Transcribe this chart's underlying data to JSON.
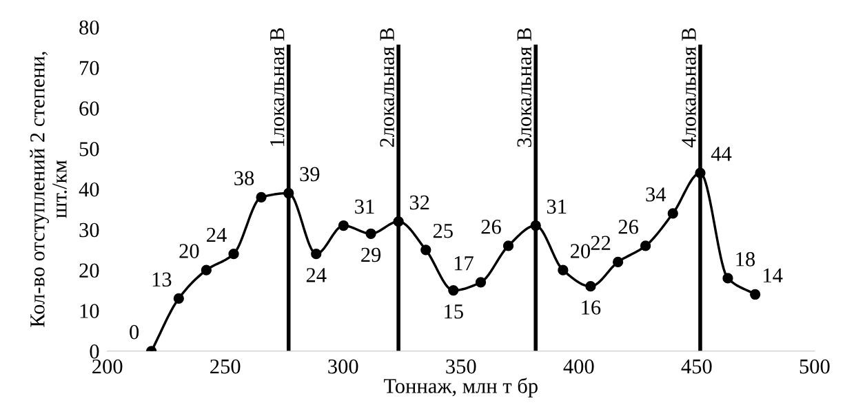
{
  "chart_data": {
    "type": "line",
    "xlabel": "Тоннаж, млн т бр",
    "ylabel": "Кол-во отступлений 2 степени,\nшт./км",
    "x": [
      218.7,
      230.3,
      242.0,
      253.6,
      265.3,
      276.9,
      288.6,
      300.2,
      311.8,
      323.5,
      335.1,
      346.8,
      358.4,
      370.1,
      381.7,
      393.3,
      405.0,
      416.6,
      428.3,
      439.9,
      451.5,
      463.2,
      474.8
    ],
    "series": [
      {
        "color": "#000000",
        "values": [
          0,
          13,
          20,
          24,
          38,
          39,
          24,
          31,
          29,
          32,
          25,
          15,
          17,
          26,
          31,
          20,
          16,
          22,
          26,
          34,
          44,
          18,
          14
        ]
      }
    ],
    "data_labels": true,
    "marker": "circle",
    "line_style": "solid",
    "xlim": [
      200,
      500
    ],
    "xticks": [
      200,
      250,
      300,
      350,
      400,
      450,
      500
    ],
    "ylim": [
      0,
      80
    ],
    "yticks": [
      0,
      10,
      20,
      30,
      40,
      50,
      60,
      70,
      80
    ],
    "grid": false,
    "legend": false,
    "ref_lines": [
      {
        "axis": "x",
        "value": 276.9,
        "label": "1локальная В",
        "color": "#000000"
      },
      {
        "axis": "x",
        "value": 323.5,
        "label": "2локальная В",
        "color": "#000000"
      },
      {
        "axis": "x",
        "value": 381.7,
        "label": "3локальная В",
        "color": "#000000"
      },
      {
        "axis": "x",
        "value": 451.5,
        "label": "4локальная В",
        "color": "#000000"
      }
    ]
  }
}
